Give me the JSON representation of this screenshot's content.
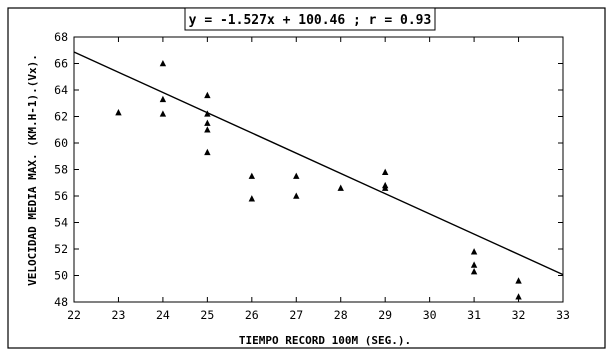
{
  "chart_data": {
    "type": "scatter",
    "title": "y = -1.527x + 100.46 ; r = 0.93",
    "xlabel": "TIEMPO RECORD 100M (SEG.).",
    "ylabel": "VELOCIDAD MEDIA MAX. (KM.H-1).(Vx).",
    "xlim": [
      22,
      33
    ],
    "ylim": [
      48,
      68
    ],
    "x_ticks": [
      "22",
      "23",
      "24",
      "25",
      "26",
      "27",
      "28",
      "29",
      "30",
      "31",
      "32",
      "33"
    ],
    "y_ticks": [
      "48",
      "50",
      "52",
      "54",
      "56",
      "58",
      "60",
      "62",
      "64",
      "66",
      "68"
    ],
    "grid": false,
    "marker": "triangle",
    "points": [
      {
        "x": 23,
        "y": 62.3
      },
      {
        "x": 24,
        "y": 66.0
      },
      {
        "x": 24,
        "y": 63.3
      },
      {
        "x": 24,
        "y": 62.2
      },
      {
        "x": 25,
        "y": 63.6
      },
      {
        "x": 25,
        "y": 62.2
      },
      {
        "x": 25,
        "y": 61.5
      },
      {
        "x": 25,
        "y": 61.0
      },
      {
        "x": 25,
        "y": 59.3
      },
      {
        "x": 26,
        "y": 57.5
      },
      {
        "x": 26,
        "y": 55.8
      },
      {
        "x": 27,
        "y": 57.5
      },
      {
        "x": 27,
        "y": 56.0
      },
      {
        "x": 28,
        "y": 56.6
      },
      {
        "x": 29,
        "y": 57.8
      },
      {
        "x": 29,
        "y": 56.8
      },
      {
        "x": 29,
        "y": 56.6
      },
      {
        "x": 31,
        "y": 51.8
      },
      {
        "x": 31,
        "y": 50.8
      },
      {
        "x": 31,
        "y": 50.3
      },
      {
        "x": 32,
        "y": 49.6
      },
      {
        "x": 32,
        "y": 48.4
      }
    ],
    "regression": {
      "slope": -1.527,
      "intercept": 100.46
    }
  }
}
